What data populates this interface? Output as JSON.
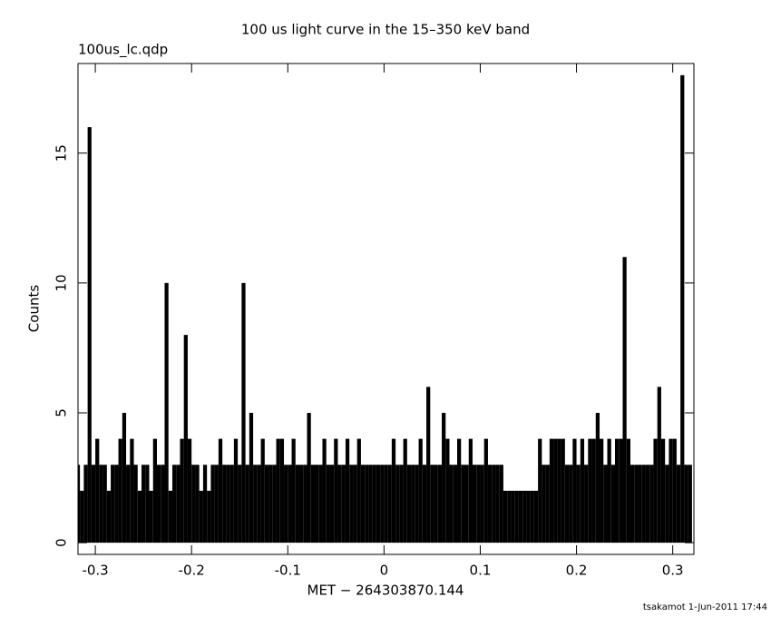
{
  "chart_data": {
    "type": "histogram",
    "title": "100 us light curve in the 15–350 keV band",
    "subtitle": "100us_lc.qdp",
    "x_label": "MET − 264303870.144",
    "y_label": "Counts",
    "footer": "tsakamot  1-Jun-2011 17:44",
    "color": "#000000",
    "xlim": [
      -0.318,
      0.322
    ],
    "ylim": [
      -0.45,
      18.45
    ],
    "xticks": [
      -0.3,
      -0.2,
      -0.1,
      0,
      0.1,
      0.2,
      0.3
    ],
    "yticks": [
      0,
      5,
      10,
      15
    ],
    "x": [
      -0.318,
      -0.314,
      -0.31,
      -0.306,
      -0.302,
      -0.298,
      -0.294,
      -0.29,
      -0.286,
      -0.282,
      -0.278,
      -0.274,
      -0.27,
      -0.266,
      -0.262,
      -0.258,
      -0.254,
      -0.25,
      -0.246,
      -0.242,
      -0.238,
      -0.234,
      -0.23,
      -0.226,
      -0.222,
      -0.218,
      -0.214,
      -0.21,
      -0.206,
      -0.202,
      -0.198,
      -0.194,
      -0.19,
      -0.186,
      -0.182,
      -0.178,
      -0.174,
      -0.17,
      -0.166,
      -0.162,
      -0.158,
      -0.154,
      -0.15,
      -0.146,
      -0.142,
      -0.138,
      -0.134,
      -0.13,
      -0.126,
      -0.122,
      -0.118,
      -0.114,
      -0.11,
      -0.106,
      -0.102,
      -0.098,
      -0.094,
      -0.09,
      -0.086,
      -0.082,
      -0.078,
      -0.074,
      -0.07,
      -0.066,
      -0.062,
      -0.058,
      -0.054,
      -0.05,
      -0.046,
      -0.042,
      -0.038,
      -0.034,
      -0.03,
      -0.026,
      -0.022,
      -0.018,
      -0.014,
      -0.01,
      -0.006,
      -0.002,
      0.002,
      0.006,
      0.01,
      0.014,
      0.018,
      0.022,
      0.026,
      0.03,
      0.034,
      0.038,
      0.042,
      0.046,
      0.05,
      0.054,
      0.058,
      0.062,
      0.066,
      0.07,
      0.074,
      0.078,
      0.082,
      0.086,
      0.09,
      0.094,
      0.098,
      0.102,
      0.106,
      0.11,
      0.114,
      0.118,
      0.122,
      0.126,
      0.13,
      0.134,
      0.138,
      0.142,
      0.146,
      0.15,
      0.154,
      0.158,
      0.162,
      0.166,
      0.17,
      0.174,
      0.178,
      0.182,
      0.186,
      0.19,
      0.194,
      0.198,
      0.202,
      0.206,
      0.21,
      0.214,
      0.218,
      0.222,
      0.226,
      0.23,
      0.234,
      0.238,
      0.242,
      0.246,
      0.25,
      0.254,
      0.258,
      0.262,
      0.266,
      0.27,
      0.274,
      0.278,
      0.282,
      0.286,
      0.29,
      0.294,
      0.298,
      0.302,
      0.306,
      0.31,
      0.314,
      0.318
    ],
    "values": [
      3,
      2,
      3,
      16,
      3,
      4,
      3,
      3,
      2,
      3,
      3,
      4,
      5,
      3,
      4,
      3,
      2,
      3,
      3,
      2,
      4,
      3,
      3,
      10,
      2,
      3,
      3,
      4,
      8,
      4,
      3,
      3,
      2,
      3,
      2,
      3,
      3,
      4,
      3,
      3,
      3,
      4,
      3,
      10,
      3,
      5,
      3,
      3,
      4,
      3,
      3,
      3,
      4,
      4,
      3,
      3,
      4,
      3,
      3,
      3,
      5,
      3,
      3,
      3,
      4,
      3,
      3,
      4,
      3,
      3,
      4,
      3,
      3,
      4,
      3,
      3,
      3,
      3,
      3,
      3,
      3,
      3,
      4,
      3,
      3,
      4,
      3,
      3,
      3,
      4,
      3,
      6,
      3,
      3,
      3,
      5,
      4,
      3,
      3,
      4,
      3,
      3,
      4,
      3,
      3,
      3,
      4,
      3,
      3,
      3,
      3,
      2,
      2,
      2,
      2,
      2,
      2,
      2,
      2,
      2,
      4,
      3,
      3,
      4,
      4,
      4,
      4,
      3,
      3,
      4,
      3,
      4,
      3,
      4,
      4,
      5,
      4,
      3,
      4,
      3,
      4,
      4,
      11,
      4,
      3,
      3,
      3,
      3,
      3,
      3,
      4,
      6,
      4,
      3,
      4,
      4,
      3,
      18,
      3,
      3
    ]
  }
}
